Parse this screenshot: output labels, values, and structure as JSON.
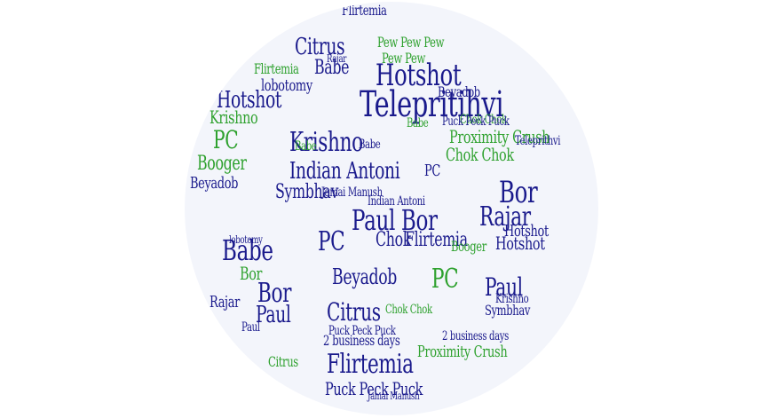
{
  "colors": {
    "green": "#2ea12e",
    "blue": "#1a1a8c",
    "background": "#ffffff",
    "disc": "#f3f5fb"
  },
  "words": [
    "Flirtemia",
    "Citrus",
    "Pew Pew Pew",
    "Pew Pew",
    "Babe",
    "Rajar",
    "Paul",
    "Flirtemia",
    "Hotshot",
    "lobotomy",
    "Beyadob",
    "Telepritihvi",
    "Hotshot",
    "Krishno",
    "Babe",
    "Bor",
    "Chok Chok",
    "Puck Peck Puck",
    "PC",
    "Krishno",
    "Proximity Crush",
    "Chok Chok",
    "Babe",
    "Booger",
    "Indian Antoni",
    "PC",
    "Beyadob",
    "Symbhav",
    "Jamai Manush",
    "Bor",
    "Rajar",
    "Paul Bor",
    "Hotshot",
    "2 business days",
    "Babe",
    "PC",
    "Chok",
    "Flirtemia",
    "Bor",
    "Beyadob",
    "Paul",
    "Rajar",
    "Citrus",
    "Symbhav",
    "Chok Chok",
    "Puck Peck Puck",
    "PC",
    "2 business days",
    "Flirtemia",
    "Proximity Crush",
    "Puck Peck Puck",
    "Citrus",
    "Booger",
    "Krishno",
    "Teleprithvi",
    "Hotshot",
    "Babe",
    "Paul",
    "lobotomy",
    "Indian Antoni",
    "Jamai Manush"
  ]
}
